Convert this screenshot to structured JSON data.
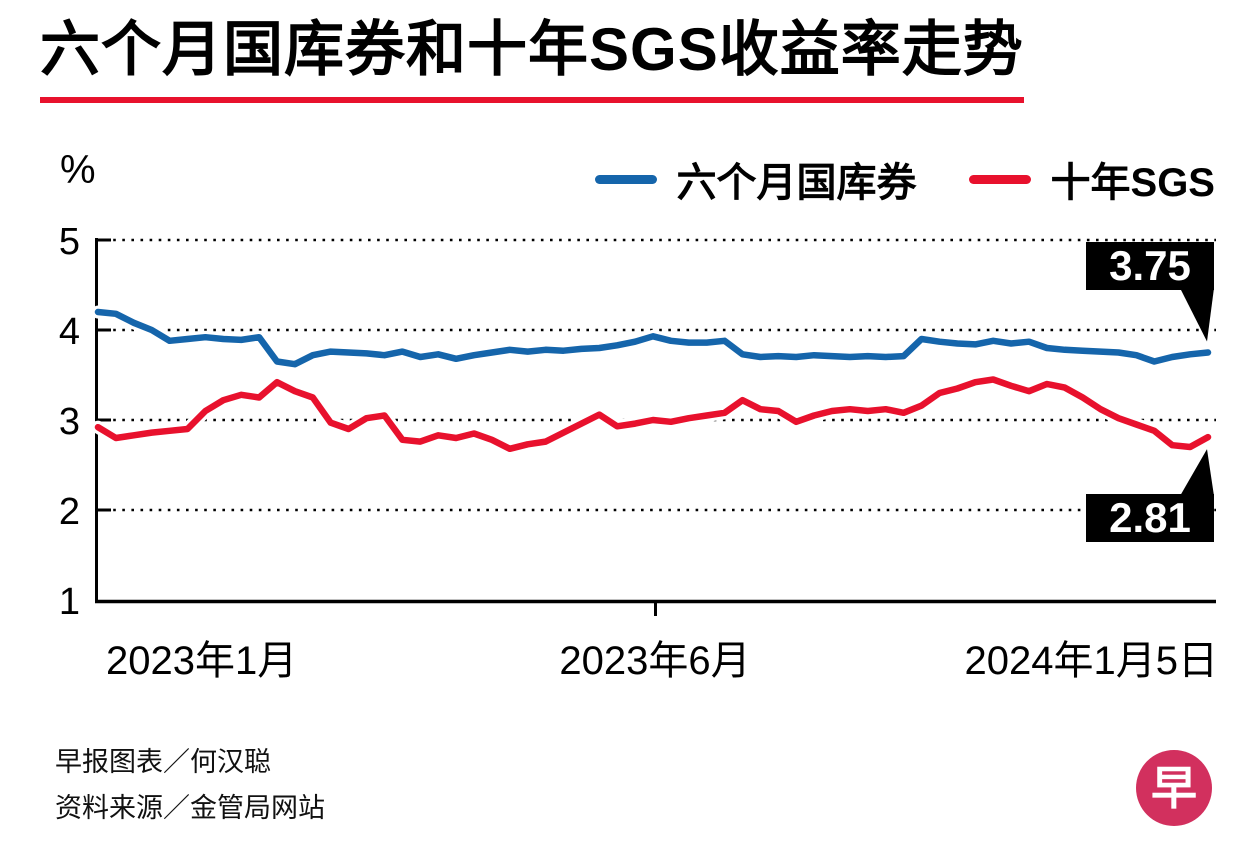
{
  "title": "六个月国库券和十年SGS收益率走势",
  "unit_label": "%",
  "accent_color": "#e8112d",
  "legend": {
    "items": [
      {
        "label": "六个月国库券",
        "color": "#1565ab"
      },
      {
        "label": "十年SGS",
        "color": "#e8112d"
      }
    ]
  },
  "chart_data": {
    "type": "line",
    "title": "六个月国库券和十年SGS收益率走势",
    "ylabel": "%",
    "ylim": [
      1,
      5
    ],
    "yticks": [
      1,
      2,
      3,
      4,
      5
    ],
    "grid": "dotted horizontal lines at 2, 3, 4, 5",
    "legend_position": "top-right",
    "xtick_labels": [
      "2023年1月",
      "2023年6月",
      "2024年1月5日"
    ],
    "series": [
      {
        "name": "六个月国库券",
        "color": "#1565ab",
        "end_label": "3.75",
        "values": [
          4.2,
          4.18,
          4.08,
          4.0,
          3.88,
          3.9,
          3.92,
          3.9,
          3.89,
          3.92,
          3.65,
          3.62,
          3.72,
          3.76,
          3.75,
          3.74,
          3.72,
          3.76,
          3.7,
          3.73,
          3.68,
          3.72,
          3.75,
          3.78,
          3.76,
          3.78,
          3.77,
          3.79,
          3.8,
          3.83,
          3.87,
          3.93,
          3.88,
          3.86,
          3.86,
          3.88,
          3.73,
          3.7,
          3.71,
          3.7,
          3.72,
          3.71,
          3.7,
          3.71,
          3.7,
          3.71,
          3.9,
          3.87,
          3.85,
          3.84,
          3.88,
          3.85,
          3.87,
          3.8,
          3.78,
          3.77,
          3.76,
          3.75,
          3.72,
          3.65,
          3.7,
          3.73,
          3.75
        ]
      },
      {
        "name": "十年SGS",
        "color": "#e8112d",
        "end_label": "2.81",
        "values": [
          2.92,
          2.8,
          2.83,
          2.86,
          2.88,
          2.9,
          3.1,
          3.22,
          3.28,
          3.25,
          3.42,
          3.32,
          3.25,
          2.97,
          2.9,
          3.02,
          3.05,
          2.78,
          2.76,
          2.83,
          2.8,
          2.85,
          2.78,
          2.68,
          2.73,
          2.76,
          2.86,
          2.96,
          3.06,
          2.93,
          2.96,
          3.0,
          2.98,
          3.02,
          3.05,
          3.08,
          3.22,
          3.12,
          3.1,
          2.98,
          3.05,
          3.1,
          3.12,
          3.1,
          3.12,
          3.08,
          3.16,
          3.3,
          3.35,
          3.42,
          3.45,
          3.38,
          3.32,
          3.4,
          3.36,
          3.25,
          3.12,
          3.02,
          2.95,
          2.88,
          2.72,
          2.7,
          2.81
        ]
      }
    ],
    "annotations": [
      {
        "series": "六个月国库券",
        "text": "3.75",
        "position": "above line end, right edge"
      },
      {
        "series": "十年SGS",
        "text": "2.81",
        "position": "below line end, right edge"
      }
    ]
  },
  "footer": {
    "credit": "早报图表／何汉聪",
    "source": "资料来源／金管局网站"
  },
  "logo": {
    "char": "早",
    "color": "#d2305e"
  }
}
